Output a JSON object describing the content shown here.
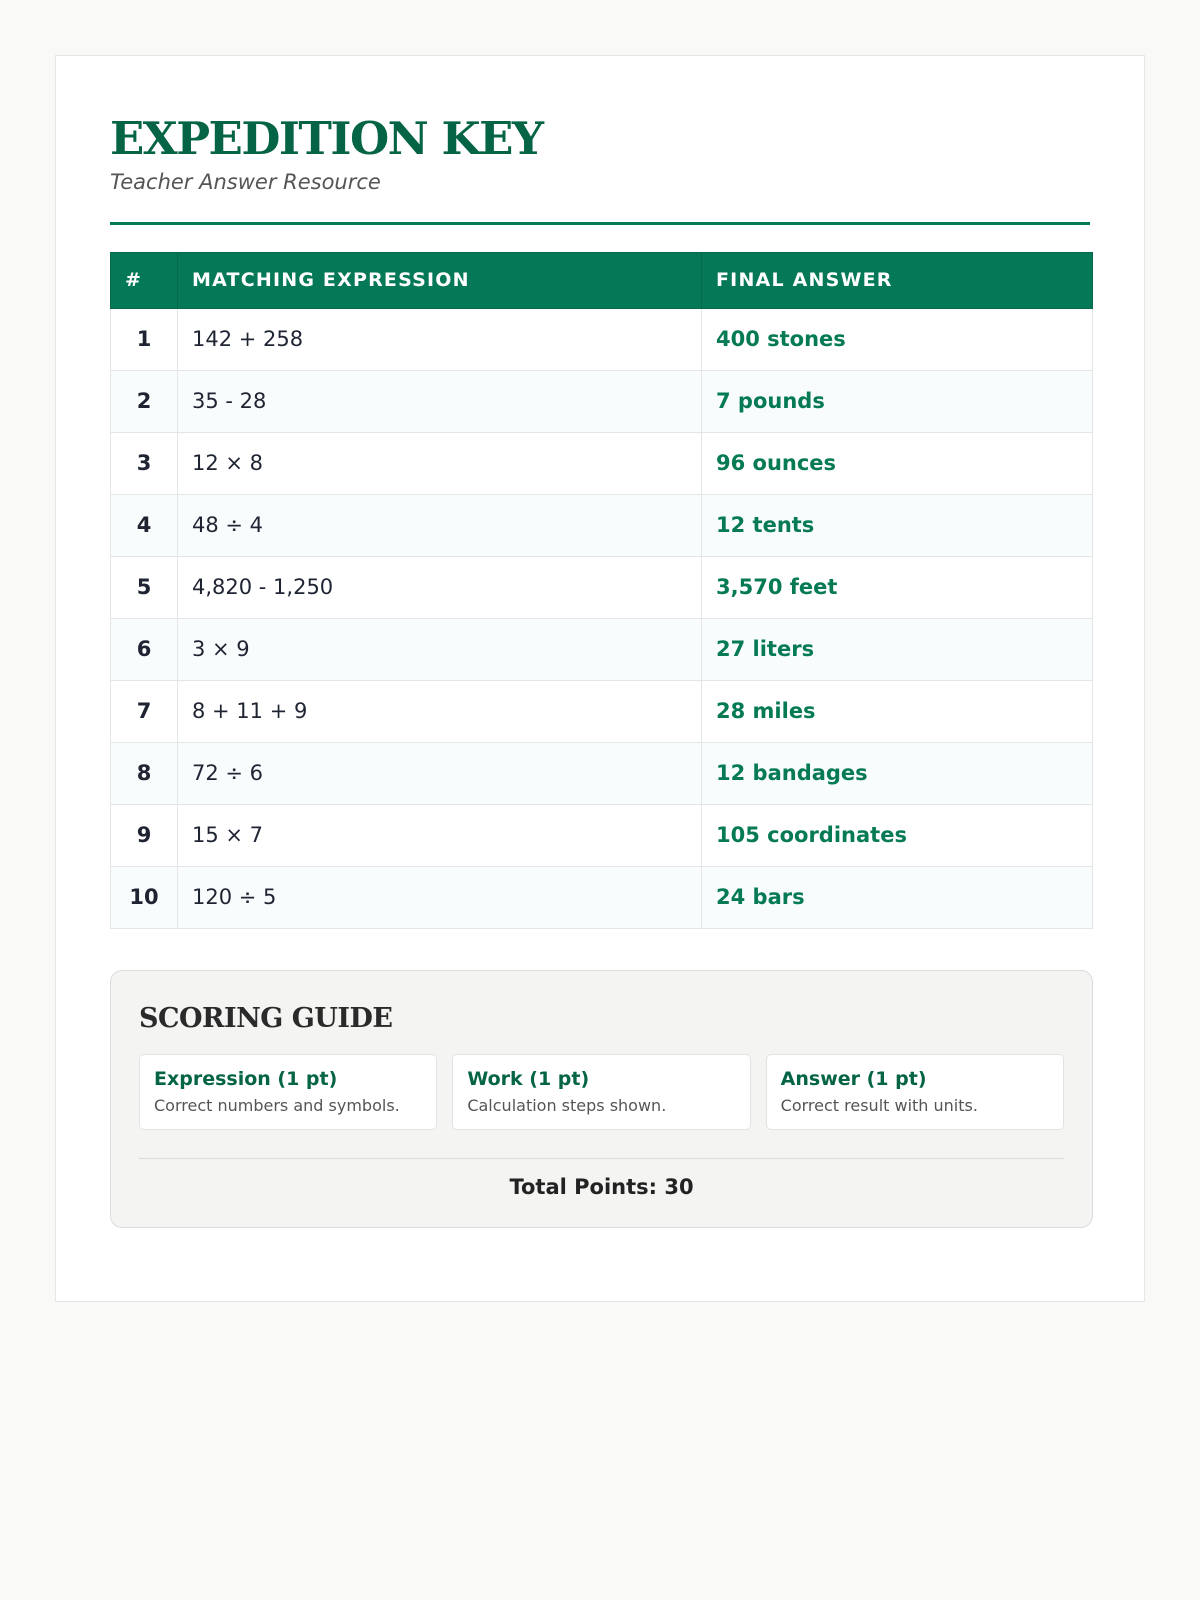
{
  "header": {
    "title": "EXPEDITION KEY",
    "subtitle": "Teacher Answer Resource"
  },
  "table": {
    "columns": [
      "#",
      "MATCHING EXPRESSION",
      "FINAL ANSWER"
    ],
    "rows": [
      {
        "n": "1",
        "expr": "142 + 258",
        "answer": "400 stones"
      },
      {
        "n": "2",
        "expr": "35 - 28",
        "answer": "7 pounds"
      },
      {
        "n": "3",
        "expr": "12 × 8",
        "answer": "96 ounces"
      },
      {
        "n": "4",
        "expr": "48 ÷ 4",
        "answer": "12 tents"
      },
      {
        "n": "5",
        "expr": "4,820 - 1,250",
        "answer": "3,570 feet"
      },
      {
        "n": "6",
        "expr": "3 × 9",
        "answer": "27 liters"
      },
      {
        "n": "7",
        "expr": "8 + 11 + 9",
        "answer": "28 miles"
      },
      {
        "n": "8",
        "expr": "72 ÷ 6",
        "answer": "12 bandages"
      },
      {
        "n": "9",
        "expr": "15 × 7",
        "answer": "105 coordinates"
      },
      {
        "n": "10",
        "expr": "120 ÷ 5",
        "answer": "24 bars"
      }
    ]
  },
  "scoring": {
    "title": "SCORING GUIDE",
    "items": [
      {
        "title": "Expression (1 pt)",
        "desc": "Correct numbers and symbols."
      },
      {
        "title": "Work (1 pt)",
        "desc": "Calculation steps shown."
      },
      {
        "title": "Answer (1 pt)",
        "desc": "Correct result with units."
      }
    ],
    "total": "Total Points: 30"
  },
  "colors": {
    "accent": "#057957",
    "title": "#046445",
    "background": "#f9f9f8"
  }
}
